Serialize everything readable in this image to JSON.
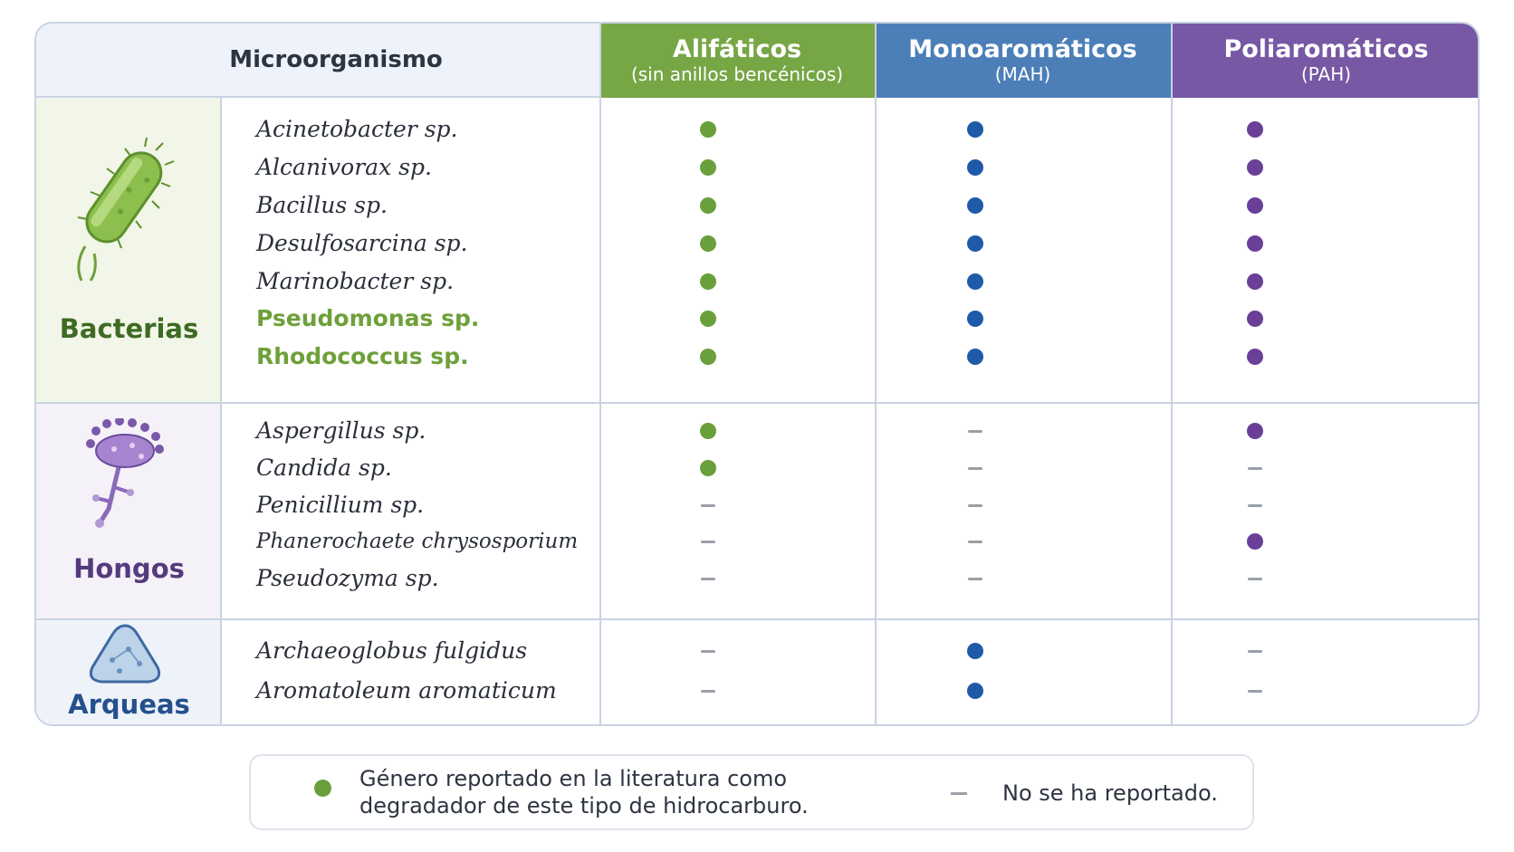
{
  "headers": {
    "microorganism": "Microorganismo",
    "aliphatic": {
      "title": "Alifáticos",
      "subtitle": "(sin anillos bencénicos)"
    },
    "monoaromatic": {
      "title": "Monoaromáticos",
      "subtitle": "(MAH)"
    },
    "polyaromatic": {
      "title": "Poliaromáticos",
      "subtitle": "(PAH)"
    }
  },
  "groups": [
    {
      "label": "Bacterias",
      "icon": "bacterium-icon",
      "rows": [
        {
          "name": "Acinetobacter sp.",
          "ali": true,
          "mah": true,
          "pah": true
        },
        {
          "name": "Alcanivorax sp.",
          "ali": true,
          "mah": true,
          "pah": true
        },
        {
          "name": "Bacillus sp.",
          "ali": true,
          "mah": true,
          "pah": true
        },
        {
          "name": "Desulfosarcina sp.",
          "ali": true,
          "mah": true,
          "pah": true
        },
        {
          "name": "Marinobacter sp.",
          "ali": true,
          "mah": true,
          "pah": true
        },
        {
          "name": "Pseudomonas sp.",
          "ali": true,
          "mah": true,
          "pah": true,
          "highlight": true
        },
        {
          "name": "Rhodococcus sp.",
          "ali": true,
          "mah": true,
          "pah": true,
          "highlight": true
        }
      ]
    },
    {
      "label": "Hongos",
      "icon": "fungus-icon",
      "rows": [
        {
          "name": "Aspergillus sp.",
          "ali": true,
          "mah": false,
          "pah": true
        },
        {
          "name": "Candida sp.",
          "ali": true,
          "mah": false,
          "pah": false
        },
        {
          "name": "Penicillium sp.",
          "ali": false,
          "mah": false,
          "pah": false
        },
        {
          "name": "Phanerochaete chrysosporium",
          "ali": false,
          "mah": false,
          "pah": true
        },
        {
          "name": "Pseudozyma sp.",
          "ali": false,
          "mah": false,
          "pah": false
        }
      ]
    },
    {
      "label": "Arqueas",
      "icon": "archaea-icon",
      "rows": [
        {
          "name": "Archaeoglobus fulgidus",
          "ali": false,
          "mah": true,
          "pah": false
        },
        {
          "name": "Aromatoleum aromaticum",
          "ali": false,
          "mah": true,
          "pah": false
        }
      ]
    }
  ],
  "colors": {
    "aliphatic": "#6aa03c",
    "monoaromatic": "#1f5aa8",
    "polyaromatic": "#6a3f98"
  },
  "legend": {
    "reported": "Género reportado en la literatura como degradador de este tipo de hidrocarburo.",
    "not_reported": "No se ha reportado."
  }
}
